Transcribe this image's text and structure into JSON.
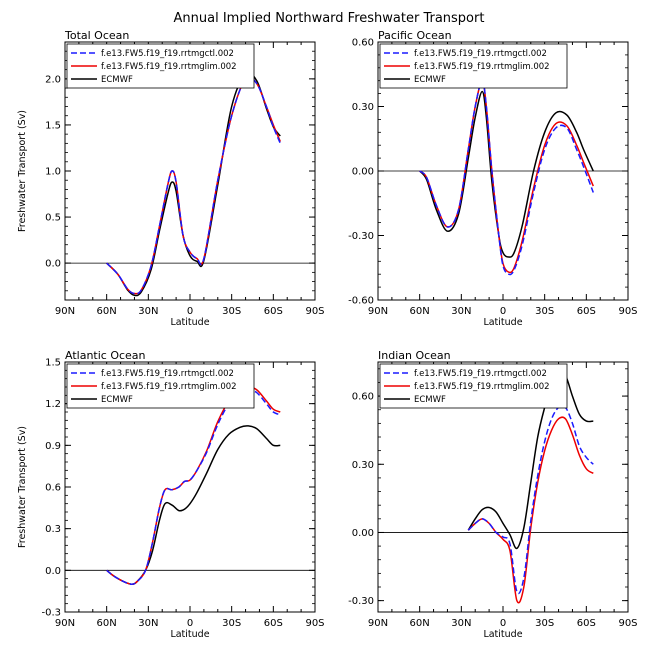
{
  "title": "Annual Implied Northward Freshwater Transport",
  "series_names": [
    "f.e13.FW5.f19_f19.rrtmgctl.002",
    "f.e13.FW5.f19_f19.rrtmglim.002",
    "ECMWF"
  ],
  "series_colors": [
    "#1a1aff",
    "#ee0000",
    "#000000"
  ],
  "chart_data": [
    {
      "type": "line",
      "title": "Total Ocean",
      "xlabel": "Latitude",
      "ylabel": "Freshwater Transport (Sv)",
      "x_ticks": [
        "90N",
        "60N",
        "30N",
        "0",
        "30S",
        "60S",
        "90S"
      ],
      "x_range": [
        90,
        -90
      ],
      "y_ticks": [
        "0.0",
        "0.5",
        "1.0",
        "1.5",
        "2.0"
      ],
      "ylim": [
        -0.4,
        2.4
      ],
      "zero_line": true,
      "legend": "top-left",
      "series": [
        {
          "name": "f.e13.FW5.f19_f19.rrtmgctl.002",
          "x": [
            60,
            52,
            45,
            40,
            35,
            28,
            22,
            16,
            13,
            10,
            5,
            0,
            -5,
            -10,
            -20,
            -30,
            -40,
            -48,
            -55,
            -60,
            -65
          ],
          "y": [
            0,
            -0.12,
            -0.28,
            -0.33,
            -0.29,
            -0.03,
            0.4,
            0.85,
            1.0,
            0.88,
            0.3,
            0.12,
            0.05,
            0.05,
            0.9,
            1.6,
            2.0,
            1.95,
            1.7,
            1.48,
            1.3
          ]
        },
        {
          "name": "f.e13.FW5.f19_f19.rrtmglim.002",
          "x": [
            60,
            52,
            45,
            40,
            35,
            28,
            22,
            16,
            13,
            10,
            5,
            0,
            -5,
            -10,
            -20,
            -30,
            -40,
            -48,
            -55,
            -60,
            -65
          ],
          "y": [
            0,
            -0.12,
            -0.28,
            -0.33,
            -0.29,
            -0.03,
            0.4,
            0.85,
            1.0,
            0.88,
            0.3,
            0.12,
            0.05,
            0.05,
            0.9,
            1.6,
            2.0,
            1.95,
            1.7,
            1.5,
            1.32
          ]
        },
        {
          "name": "ECMWF",
          "x": [
            60,
            52,
            45,
            40,
            35,
            28,
            22,
            16,
            13,
            10,
            5,
            0,
            -5,
            -10,
            -20,
            -30,
            -40,
            -48,
            -55,
            -60,
            -65
          ],
          "y": [
            0,
            -0.12,
            -0.29,
            -0.35,
            -0.31,
            -0.07,
            0.35,
            0.75,
            0.88,
            0.78,
            0.3,
            0.08,
            0.02,
            0.03,
            0.85,
            1.7,
            2.05,
            1.98,
            1.68,
            1.48,
            1.38
          ]
        }
      ]
    },
    {
      "type": "line",
      "title": "Pacific Ocean",
      "xlabel": "Latitude",
      "ylabel": "",
      "x_ticks": [
        "90N",
        "60N",
        "30N",
        "0",
        "30S",
        "60S",
        "90S"
      ],
      "x_range": [
        90,
        -90
      ],
      "y_ticks": [
        "-0.60",
        "-0.30",
        "0.00",
        "0.30",
        "0.60"
      ],
      "ylim": [
        -0.6,
        0.6
      ],
      "zero_line": true,
      "legend": "top-left",
      "series": [
        {
          "name": "f.e13.FW5.f19_f19.rrtmgctl.002",
          "x": [
            60,
            55,
            48,
            40,
            32,
            25,
            20,
            15,
            12,
            8,
            3,
            0,
            -4,
            -8,
            -14,
            -22,
            -30,
            -38,
            -46,
            -53,
            -58,
            -65
          ],
          "y": [
            0,
            -0.03,
            -0.16,
            -0.26,
            -0.18,
            0.1,
            0.3,
            0.42,
            0.3,
            0.0,
            -0.3,
            -0.44,
            -0.48,
            -0.46,
            -0.34,
            -0.1,
            0.1,
            0.2,
            0.2,
            0.1,
            0.02,
            -0.1
          ]
        },
        {
          "name": "f.e13.FW5.f19_f19.rrtmglim.002",
          "x": [
            60,
            55,
            48,
            40,
            32,
            25,
            20,
            15,
            12,
            8,
            3,
            0,
            -4,
            -8,
            -14,
            -22,
            -30,
            -38,
            -46,
            -53,
            -58,
            -65
          ],
          "y": [
            0,
            -0.03,
            -0.16,
            -0.26,
            -0.18,
            0.1,
            0.3,
            0.42,
            0.3,
            0.0,
            -0.3,
            -0.43,
            -0.47,
            -0.45,
            -0.32,
            -0.08,
            0.12,
            0.22,
            0.21,
            0.12,
            0.04,
            -0.07
          ]
        },
        {
          "name": "ECMWF",
          "x": [
            60,
            55,
            48,
            40,
            32,
            25,
            20,
            15,
            12,
            8,
            3,
            0,
            -4,
            -8,
            -14,
            -22,
            -30,
            -38,
            -46,
            -53,
            -58,
            -65
          ],
          "y": [
            0,
            -0.04,
            -0.18,
            -0.28,
            -0.2,
            0.06,
            0.25,
            0.37,
            0.25,
            -0.05,
            -0.3,
            -0.38,
            -0.4,
            -0.38,
            -0.25,
            0.0,
            0.18,
            0.27,
            0.26,
            0.18,
            0.1,
            0.0
          ]
        }
      ]
    },
    {
      "type": "line",
      "title": "Atlantic Ocean",
      "xlabel": "Latitude",
      "ylabel": "Freshwater Transport (Sv)",
      "x_ticks": [
        "90N",
        "60N",
        "30N",
        "0",
        "30S",
        "60S",
        "90S"
      ],
      "x_range": [
        90,
        -90
      ],
      "y_ticks": [
        "-0.3",
        "0.0",
        "0.3",
        "0.6",
        "0.9",
        "1.2",
        "1.5"
      ],
      "ylim": [
        -0.3,
        1.5
      ],
      "zero_line": true,
      "legend": "top-left",
      "series": [
        {
          "name": "f.e13.FW5.f19_f19.rrtmgctl.002",
          "x": [
            60,
            55,
            48,
            42,
            38,
            32,
            27,
            22,
            18,
            13,
            8,
            4,
            0,
            -5,
            -12,
            -20,
            -28,
            -36,
            -42,
            -48,
            -55,
            -60,
            -65
          ],
          "y": [
            0,
            -0.04,
            -0.08,
            -0.1,
            -0.08,
            0.0,
            0.2,
            0.45,
            0.58,
            0.58,
            0.6,
            0.64,
            0.65,
            0.72,
            0.85,
            1.05,
            1.2,
            1.28,
            1.3,
            1.28,
            1.2,
            1.14,
            1.12
          ]
        },
        {
          "name": "f.e13.FW5.f19_f19.rrtmglim.002",
          "x": [
            60,
            55,
            48,
            42,
            38,
            32,
            27,
            22,
            18,
            13,
            8,
            4,
            0,
            -5,
            -12,
            -20,
            -28,
            -36,
            -42,
            -48,
            -55,
            -60,
            -65
          ],
          "y": [
            0,
            -0.04,
            -0.08,
            -0.1,
            -0.08,
            0.0,
            0.2,
            0.45,
            0.58,
            0.58,
            0.6,
            0.64,
            0.65,
            0.72,
            0.86,
            1.07,
            1.22,
            1.3,
            1.32,
            1.3,
            1.22,
            1.16,
            1.14
          ]
        },
        {
          "name": "ECMWF",
          "x": [
            60,
            55,
            48,
            42,
            38,
            32,
            27,
            22,
            18,
            13,
            8,
            4,
            0,
            -5,
            -12,
            -20,
            -28,
            -36,
            -42,
            -48,
            -55,
            -60,
            -65
          ],
          "y": [
            0,
            -0.04,
            -0.08,
            -0.1,
            -0.08,
            0.0,
            0.14,
            0.36,
            0.48,
            0.47,
            0.43,
            0.44,
            0.48,
            0.56,
            0.7,
            0.87,
            0.98,
            1.03,
            1.04,
            1.02,
            0.95,
            0.9,
            0.9
          ]
        }
      ]
    },
    {
      "type": "line",
      "title": "Indian Ocean",
      "xlabel": "Latitude",
      "ylabel": "",
      "x_ticks": [
        "90N",
        "60N",
        "30N",
        "0",
        "30S",
        "60S",
        "90S"
      ],
      "x_range": [
        90,
        -90
      ],
      "y_ticks": [
        "-0.30",
        "0.00",
        "0.30",
        "0.60"
      ],
      "ylim": [
        -0.35,
        0.75
      ],
      "zero_line": true,
      "legend": "top-left",
      "series": [
        {
          "name": "f.e13.FW5.f19_f19.rrtmgctl.002",
          "x": [
            25,
            20,
            15,
            10,
            5,
            0,
            -5,
            -10,
            -15,
            -20,
            -25,
            -30,
            -35,
            -40,
            -45,
            -50,
            -55,
            -60,
            -65
          ],
          "y": [
            0.01,
            0.04,
            0.06,
            0.04,
            0.0,
            -0.02,
            -0.05,
            -0.26,
            -0.2,
            0.05,
            0.25,
            0.4,
            0.5,
            0.55,
            0.55,
            0.48,
            0.38,
            0.33,
            0.3
          ]
        },
        {
          "name": "f.e13.FW5.f19_f19.rrtmglim.002",
          "x": [
            25,
            20,
            15,
            10,
            5,
            0,
            -5,
            -10,
            -15,
            -20,
            -25,
            -30,
            -35,
            -40,
            -45,
            -50,
            -55,
            -60,
            -65
          ],
          "y": [
            0.01,
            0.04,
            0.06,
            0.04,
            0.0,
            -0.03,
            -0.08,
            -0.3,
            -0.24,
            0.02,
            0.22,
            0.36,
            0.45,
            0.5,
            0.5,
            0.43,
            0.34,
            0.28,
            0.26
          ]
        },
        {
          "name": "ECMWF",
          "x": [
            25,
            20,
            15,
            10,
            5,
            0,
            -5,
            -10,
            -15,
            -20,
            -25,
            -30,
            -35,
            -40,
            -45,
            -50,
            -55,
            -60,
            -65
          ],
          "y": [
            0.01,
            0.06,
            0.1,
            0.11,
            0.09,
            0.04,
            -0.01,
            -0.07,
            0.02,
            0.22,
            0.42,
            0.55,
            0.65,
            0.7,
            0.69,
            0.6,
            0.52,
            0.49,
            0.49
          ]
        }
      ]
    }
  ]
}
